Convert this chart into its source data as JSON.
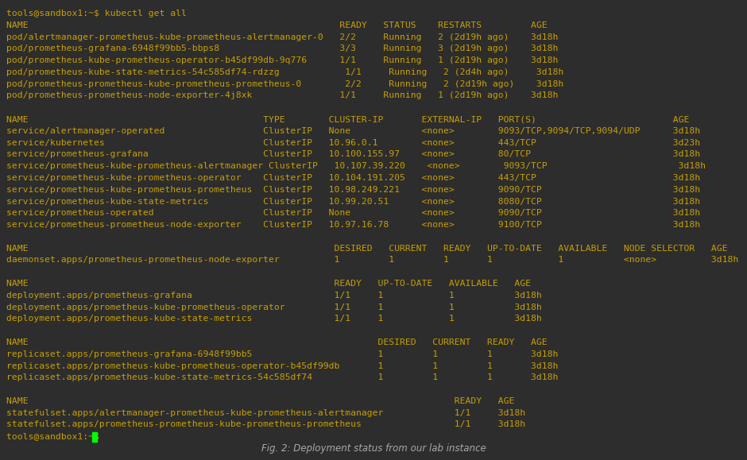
{
  "background_color": "#2d2d2d",
  "text_color": "#c8a000",
  "cursor_color": "#00ff00",
  "font_size": 8.2,
  "title": "Fig. 2: Deployment status from our lab instance",
  "terminal_lines": [
    "tools@sandbox1:~$ kubectl get all",
    "NAME                                                         READY   STATUS    RESTARTS         AGE",
    "pod/alertmanager-prometheus-kube-prometheus-alertmanager-0   2/2     Running   2 (2d19h ago)    3d18h",
    "pod/prometheus-grafana-6948f99bb5-bbps8                      3/3     Running   3 (2d19h ago)    3d18h",
    "pod/prometheus-kube-prometheus-operator-b45df99db-9q776      1/1     Running   1 (2d19h ago)    3d18h",
    "pod/prometheus-kube-state-metrics-54c585df74-rdzzg            1/1     Running   2 (2d4h ago)     3d18h",
    "pod/prometheus-prometheus-kube-prometheus-prometheus-0        2/2     Running   2 (2d19h ago)    3d18h",
    "pod/prometheus-prometheus-node-exporter-4j8xk                1/1     Running   1 (2d19h ago)    3d18h",
    "",
    "NAME                                           TYPE        CLUSTER-IP       EXTERNAL-IP   PORT(S)                         AGE",
    "service/alertmanager-operated                  ClusterIP   None             <none>        9093/TCP,9094/TCP,9094/UDP      3d18h",
    "service/kubernetes                             ClusterIP   10.96.0.1        <none>        443/TCP                         3d23h",
    "service/prometheus-grafana                     ClusterIP   10.100.155.97    <none>        80/TCP                          3d18h",
    "service/prometheus-kube-prometheus-alertmanager ClusterIP   10.107.39.220    <none>        9093/TCP                        3d18h",
    "service/prometheus-kube-prometheus-operator    ClusterIP   10.104.191.205   <none>        443/TCP                         3d18h",
    "service/prometheus-kube-prometheus-prometheus  ClusterIP   10.98.249.221    <none>        9090/TCP                        3d18h",
    "service/prometheus-kube-state-metrics          ClusterIP   10.99.20.51      <none>        8080/TCP                        3d18h",
    "service/prometheus-operated                    ClusterIP   None             <none>        9090/TCP                        3d18h",
    "service/prometheus-prometheus-node-exporter    ClusterIP   10.97.16.78      <none>        9100/TCP                        3d18h",
    "",
    "NAME                                                        DESIRED   CURRENT   READY   UP-TO-DATE   AVAILABLE   NODE SELECTOR   AGE",
    "daemonset.apps/prometheus-prometheus-node-exporter          1         1         1       1            1           <none>          3d18h",
    "",
    "NAME                                                        READY   UP-TO-DATE   AVAILABLE   AGE",
    "deployment.apps/prometheus-grafana                          1/1     1            1           3d18h",
    "deployment.apps/prometheus-kube-prometheus-operator         1/1     1            1           3d18h",
    "deployment.apps/prometheus-kube-state-metrics               1/1     1            1           3d18h",
    "",
    "NAME                                                                DESIRED   CURRENT   READY   AGE",
    "replicaset.apps/prometheus-grafana-6948f99bb5                       1         1         1       3d18h",
    "replicaset.apps/prometheus-kube-prometheus-operator-b45df99db       1         1         1       3d18h",
    "replicaset.apps/prometheus-kube-state-metrics-54c585df74            1         1         1       3d18h",
    "",
    "NAME                                                                              READY   AGE",
    "statefulset.apps/alertmanager-prometheus-kube-prometheus-alertmanager             1/1     3d18h",
    "statefulset.apps/prometheus-prometheus-kube-prometheus-prometheus                 1/1     3d18h",
    "tools@sandbox1:~$ "
  ]
}
